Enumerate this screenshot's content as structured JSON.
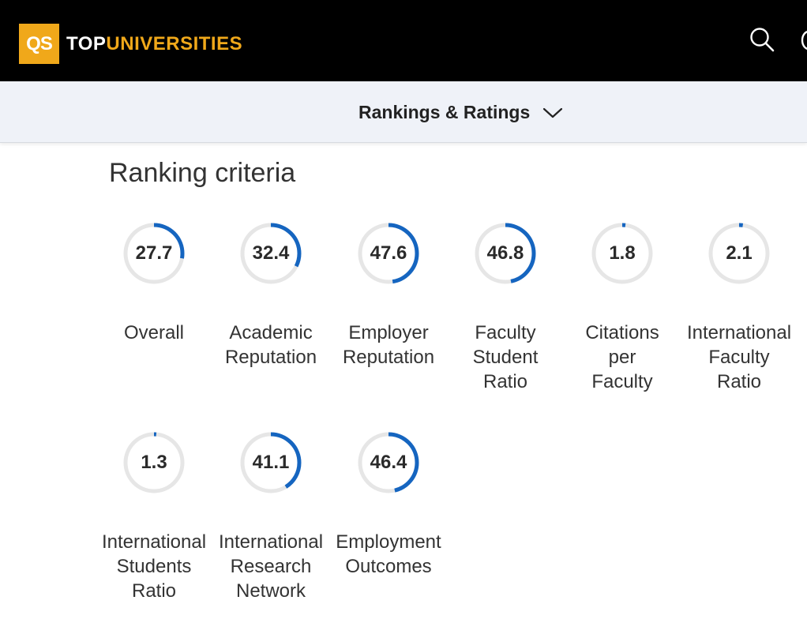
{
  "header": {
    "logo_mark": "QS",
    "logo_text_top": "TOP",
    "logo_text_rest": "UNIVERSITIES",
    "search_icon": "search-icon"
  },
  "subnav": {
    "label": "Rankings & Ratings",
    "chevron_icon": "chevron-down-icon"
  },
  "section": {
    "title": "Ranking criteria"
  },
  "colors": {
    "accent": "#1565c0",
    "ring_track": "#e6e6e6",
    "brand": "#f0a81a"
  },
  "metrics": [
    {
      "value": "27.7",
      "fraction": 0.277,
      "label": "Overall"
    },
    {
      "value": "32.4",
      "fraction": 0.324,
      "label": "Academic\nReputation"
    },
    {
      "value": "47.6",
      "fraction": 0.476,
      "label": "Employer\nReputation"
    },
    {
      "value": "46.8",
      "fraction": 0.468,
      "label": "Faculty\nStudent\nRatio"
    },
    {
      "value": "1.8",
      "fraction": 0.018,
      "label": "Citations\nper\nFaculty"
    },
    {
      "value": "2.1",
      "fraction": 0.021,
      "label": "International\nFaculty\nRatio"
    },
    {
      "value": "1.3",
      "fraction": 0.013,
      "label": "International\nStudents\nRatio"
    },
    {
      "value": "41.1",
      "fraction": 0.411,
      "label": "International\nResearch\nNetwork"
    },
    {
      "value": "46.4",
      "fraction": 0.464,
      "label": "Employment\nOutcomes"
    }
  ]
}
